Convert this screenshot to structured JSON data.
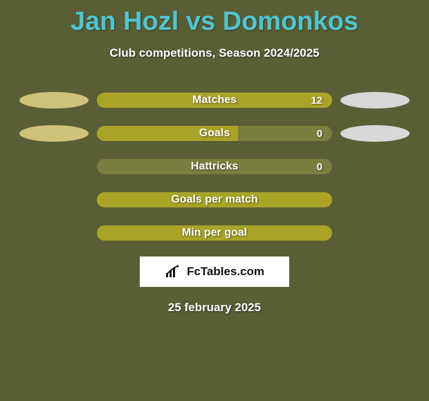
{
  "background_color": "#5a5e35",
  "title": {
    "text": "Jan Hozl vs Domonkos",
    "color": "#4fc5d0",
    "fontsize": 38
  },
  "subtitle": {
    "text": "Club competitions, Season 2024/2025",
    "color": "#ffffff",
    "fontsize": 17
  },
  "colors": {
    "left_fill": "#a9a428",
    "right_fill": "#7a7e3e",
    "ellipse_left": "#cfc27a",
    "ellipse_right": "#d8d8d8"
  },
  "rows": [
    {
      "label": "Matches",
      "value": "12",
      "left_pct": 100,
      "show_left_ellipse": true,
      "show_right_ellipse": true
    },
    {
      "label": "Goals",
      "value": "0",
      "left_pct": 60,
      "show_left_ellipse": true,
      "show_right_ellipse": true
    },
    {
      "label": "Hattricks",
      "value": "0",
      "left_pct": 0,
      "show_left_ellipse": false,
      "show_right_ellipse": false
    },
    {
      "label": "Goals per match",
      "value": "",
      "left_pct": 100,
      "show_left_ellipse": false,
      "show_right_ellipse": false
    },
    {
      "label": "Min per goal",
      "value": "",
      "left_pct": 100,
      "show_left_ellipse": false,
      "show_right_ellipse": false
    }
  ],
  "badge": {
    "text": "FcTables.com",
    "bg": "#ffffff",
    "text_color": "#111111"
  },
  "date": {
    "text": "25 february 2025",
    "color": "#ffffff",
    "fontsize": 17
  }
}
